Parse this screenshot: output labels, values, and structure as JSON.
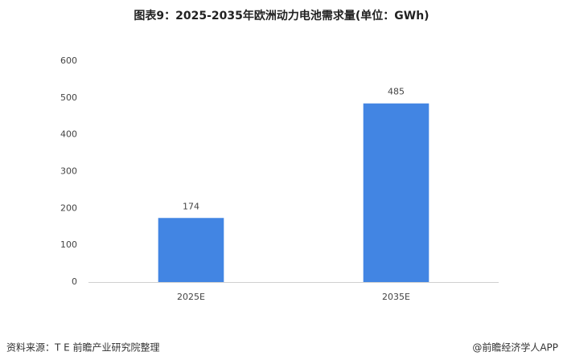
{
  "chart_data": {
    "type": "bar",
    "title": "图表9：2025-2035年欧洲动力电池需求量(单位：GWh)",
    "categories": [
      "2025E",
      "2035E"
    ],
    "values": [
      174,
      485
    ],
    "color": "#4285e3",
    "ylim": [
      0,
      600
    ],
    "yticks": [
      0,
      100,
      200,
      300,
      400,
      500,
      600
    ],
    "grid": false,
    "source": "资料来源：T E 前瞻产业研究院整理",
    "credit": "@前瞻经济学人APP"
  }
}
